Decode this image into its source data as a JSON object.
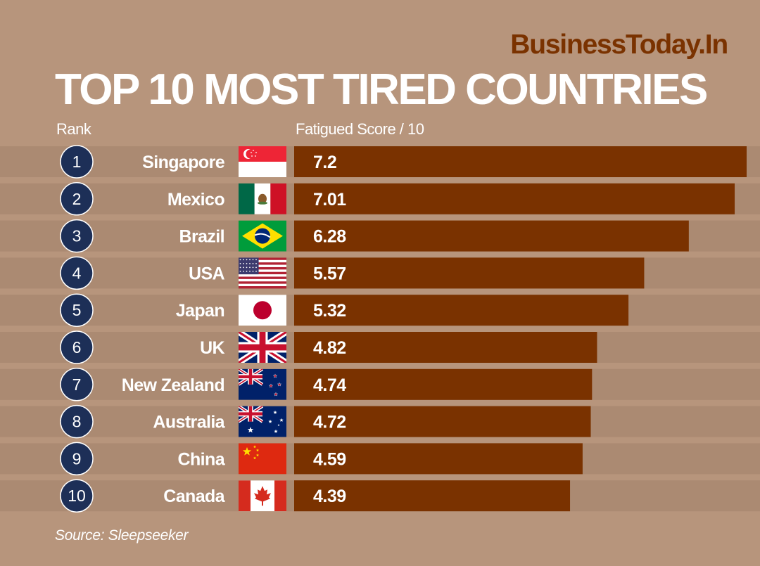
{
  "header": {
    "brand": "BusinessToday.In",
    "title": "TOP 10 MOST TIRED COUNTRIES",
    "rank_label": "Rank",
    "score_label": "Fatigued Score / 10"
  },
  "footer": {
    "source": "Source: Sleepseeker"
  },
  "colors": {
    "background": "#b7957c",
    "stripe": "#ab8a72",
    "bar": "#7a3200",
    "rank_circle": "#1d2f57",
    "brand": "#7a3200"
  },
  "chart_data": {
    "type": "bar",
    "orientation": "horizontal",
    "title": "TOP 10 MOST TIRED COUNTRIES",
    "xlabel": "Fatigued Score / 10",
    "ylabel": "Rank",
    "xlim": [
      0,
      7.2
    ],
    "categories": [
      "Singapore",
      "Mexico",
      "Brazil",
      "USA",
      "Japan",
      "UK",
      "New Zealand",
      "Australia",
      "China",
      "Canada"
    ],
    "ranks": [
      "1",
      "2",
      "3",
      "4",
      "5",
      "6",
      "7",
      "8",
      "9",
      "10"
    ],
    "values": [
      7.2,
      7.01,
      6.28,
      5.57,
      5.32,
      4.82,
      4.74,
      4.72,
      4.59,
      4.39
    ],
    "value_labels": [
      "7.2",
      "7.01",
      "6.28",
      "5.57",
      "5.32",
      "4.82",
      "4.74",
      "4.72",
      "4.59",
      "4.39"
    ],
    "flags": [
      "singapore-flag",
      "mexico-flag",
      "brazil-flag",
      "usa-flag",
      "japan-flag",
      "uk-flag",
      "new-zealand-flag",
      "australia-flag",
      "china-flag",
      "canada-flag"
    ]
  }
}
